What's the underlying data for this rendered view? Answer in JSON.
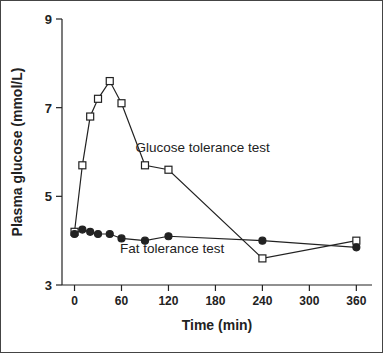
{
  "chart_data": {
    "type": "line",
    "x_label": "Time (min)",
    "y_label": "Plasma glucose (mmol/L)",
    "x": [
      0,
      10,
      20,
      30,
      45,
      60,
      90,
      120,
      240,
      360
    ],
    "series": [
      {
        "name": "Glucose tolerance test",
        "color": "#222222",
        "marker": "open-square",
        "line_style": "solid",
        "values": [
          4.2,
          5.7,
          6.8,
          7.2,
          7.6,
          7.1,
          5.7,
          5.6,
          3.6,
          4.0
        ]
      },
      {
        "name": "Fat tolerance test",
        "color": "#222222",
        "marker": "filled-circle",
        "line_style": "solid",
        "values": [
          4.15,
          4.25,
          4.2,
          4.15,
          4.15,
          4.05,
          4.0,
          4.1,
          4.0,
          3.85
        ]
      }
    ],
    "xlim": [
      -16,
      380
    ],
    "xticks": [
      0,
      60,
      120,
      180,
      240,
      300,
      360
    ],
    "ylim": [
      3,
      9
    ],
    "yticks": [
      3,
      5,
      7,
      9
    ],
    "grid": false
  }
}
